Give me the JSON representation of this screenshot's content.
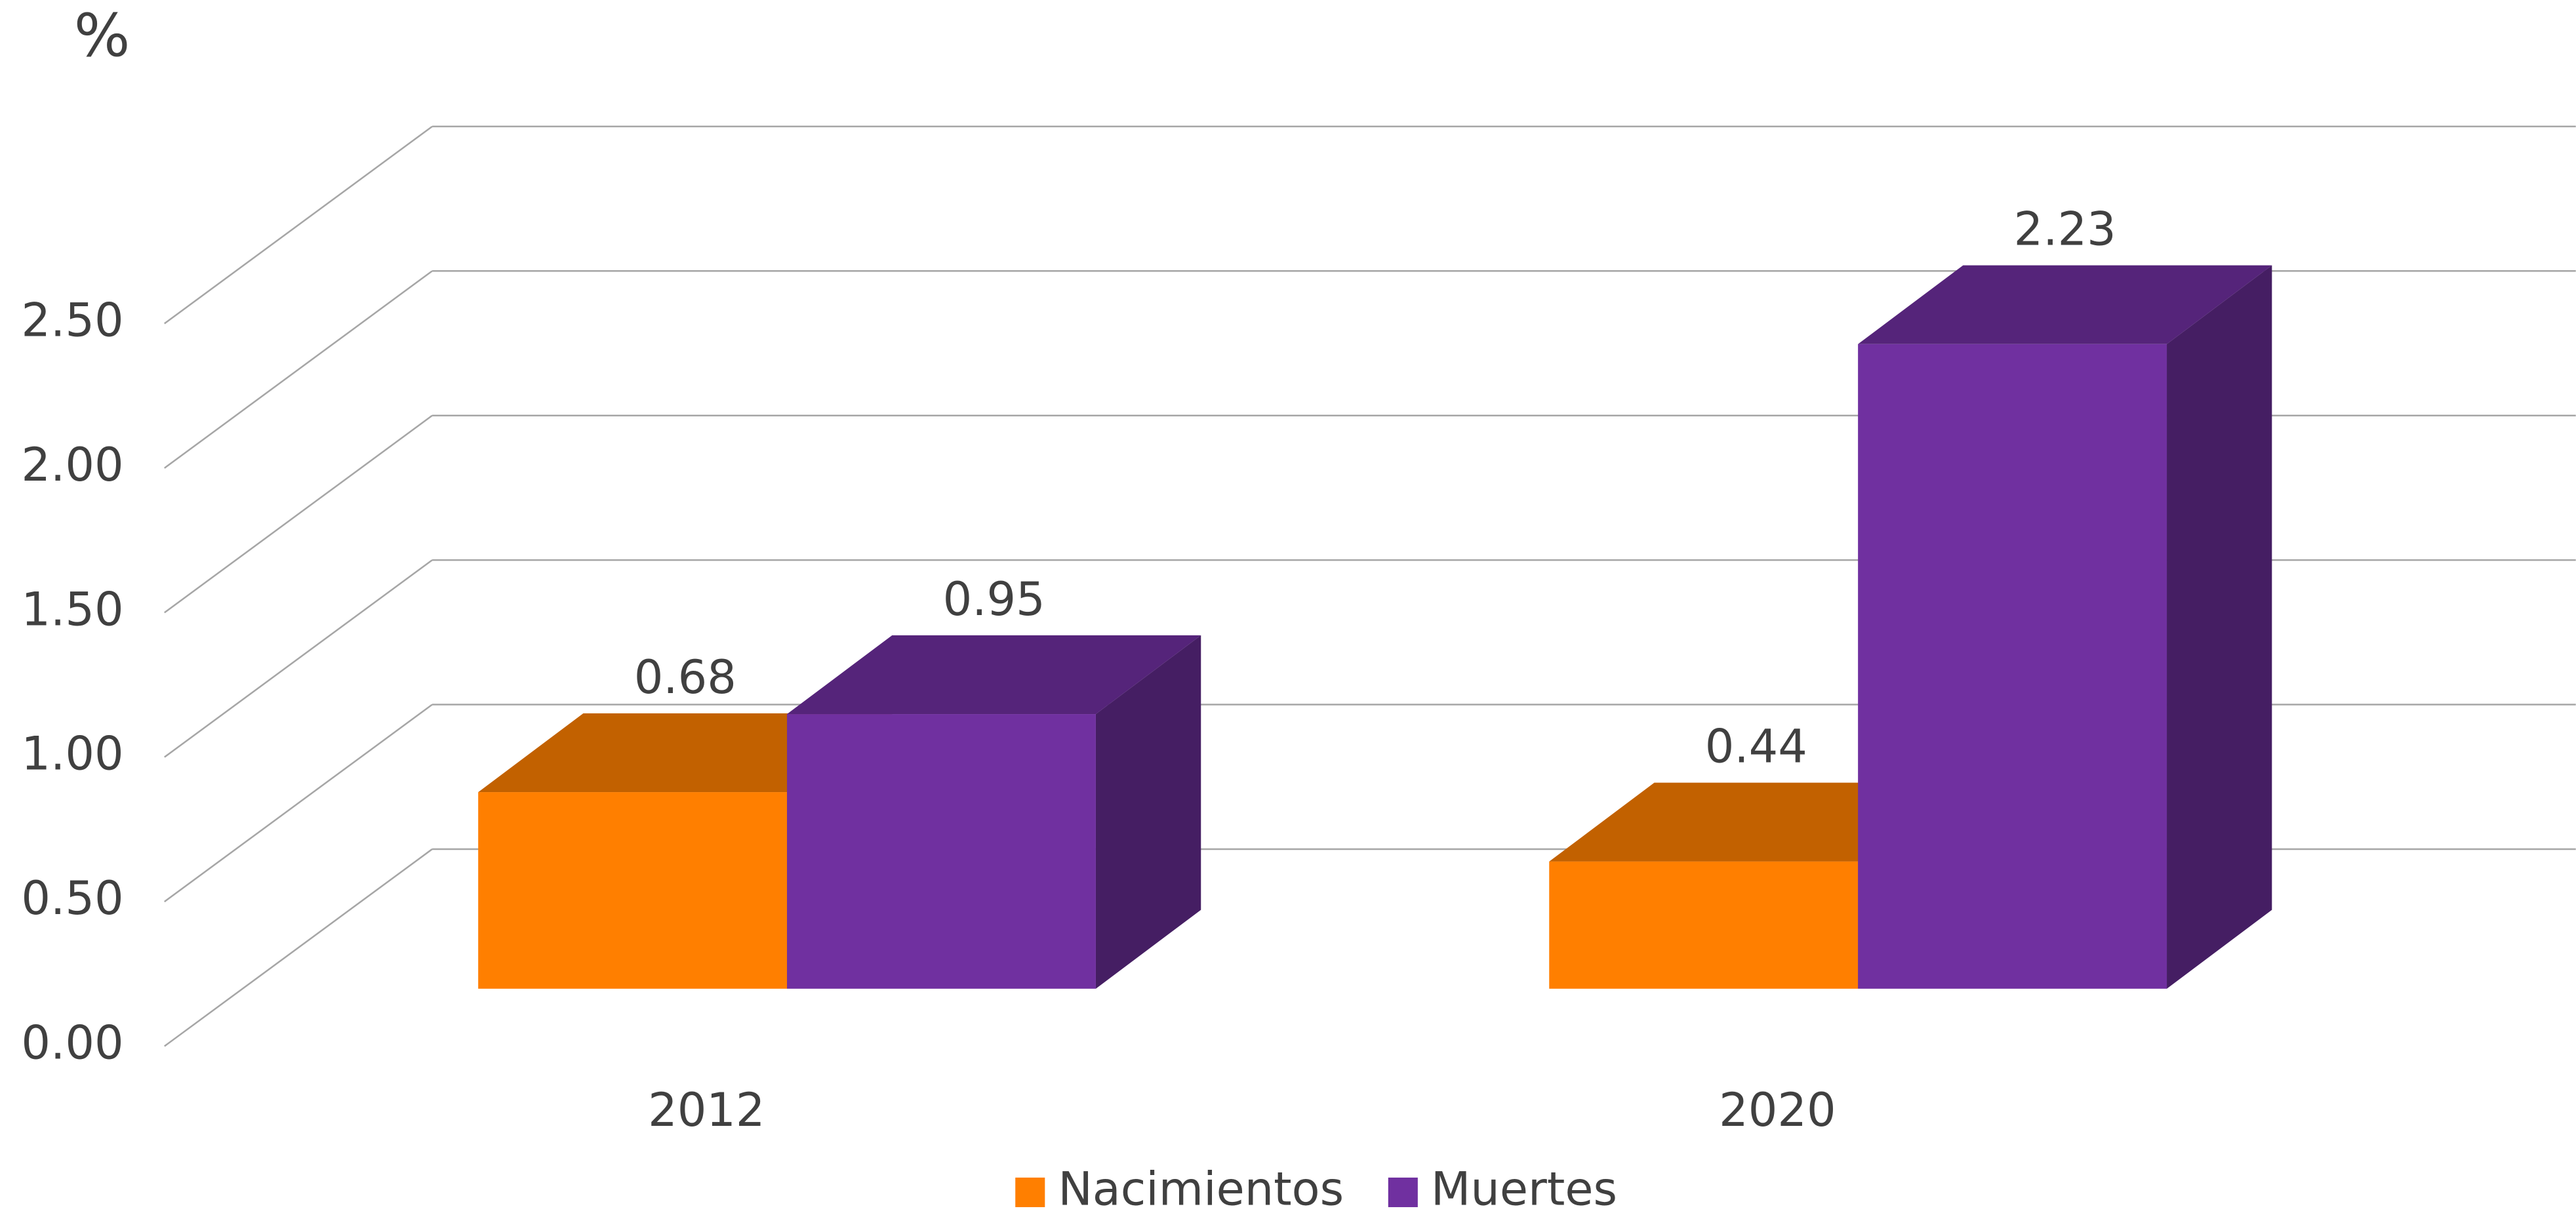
{
  "chart_data": {
    "type": "bar3d",
    "y_axis_label": "%",
    "categories": [
      "2012",
      "2020"
    ],
    "series": [
      {
        "name": "Nacimientos",
        "color": "#FF7F00",
        "values": [
          0.68,
          0.44
        ]
      },
      {
        "name": "Muertes",
        "color": "#7030A0",
        "values": [
          0.95,
          2.23
        ]
      }
    ],
    "ylim": [
      0,
      2.5
    ],
    "yticks": [
      {
        "value": 0,
        "label": "0.00"
      },
      {
        "value": 0.5,
        "label": "0.50"
      },
      {
        "value": 1,
        "label": "1.00"
      },
      {
        "value": 1.5,
        "label": "1.50"
      },
      {
        "value": 2,
        "label": "2.00"
      },
      {
        "value": 2.5,
        "label": "2.50"
      }
    ],
    "grid": true,
    "legend": "bottom"
  }
}
